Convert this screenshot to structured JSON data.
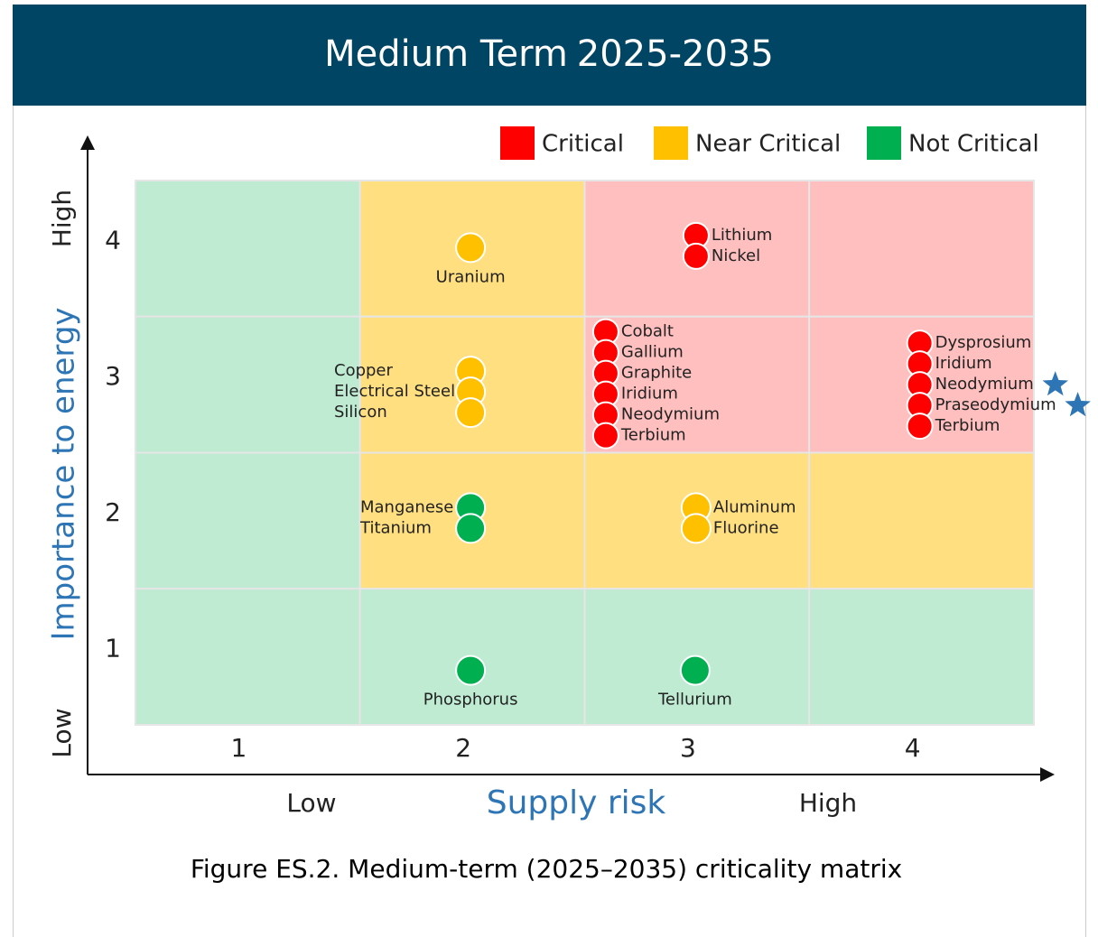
{
  "header": {
    "title": "Medium Term",
    "years": "2025-2035"
  },
  "legend": [
    {
      "label": "Critical",
      "color": "#ff0000"
    },
    {
      "label": "Near Critical",
      "color": "#ffc000"
    },
    {
      "label": "Not Critical",
      "color": "#00b050"
    }
  ],
  "y_axis": {
    "title": "Importance to energy",
    "low": "Low",
    "high": "High",
    "ticks": [
      1,
      2,
      3,
      4
    ]
  },
  "x_axis": {
    "title": "Supply risk",
    "low": "Low",
    "high": "High",
    "ticks": [
      1,
      2,
      3,
      4
    ]
  },
  "zones": [
    [
      2,
      1,
      0,
      0
    ],
    [
      2,
      1,
      0,
      0
    ],
    [
      2,
      1,
      1,
      1
    ],
    [
      2,
      2,
      2,
      2
    ]
  ],
  "groups": [
    {
      "x": 2,
      "y": 4,
      "status": 1,
      "items": [
        {
          "name": "Uranium"
        }
      ]
    },
    {
      "x": 3,
      "y": 4,
      "status": 0,
      "items": [
        {
          "name": "Lithium"
        },
        {
          "name": "Nickel"
        }
      ]
    },
    {
      "x": 2,
      "y": 3,
      "status": 1,
      "items": [
        {
          "name": "Copper"
        },
        {
          "name": "Electrical Steel"
        },
        {
          "name": "Silicon"
        }
      ]
    },
    {
      "x": 3,
      "y": 3,
      "status": 0,
      "items": [
        {
          "name": "Cobalt"
        },
        {
          "name": "Gallium"
        },
        {
          "name": "Graphite"
        },
        {
          "name": "Iridium"
        },
        {
          "name": "Neodymium"
        },
        {
          "name": "Terbium"
        }
      ]
    },
    {
      "x": 4,
      "y": 3,
      "status": 0,
      "items": [
        {
          "name": "Dysprosium"
        },
        {
          "name": "Iridium"
        },
        {
          "name": "Neodymium",
          "star": true
        },
        {
          "name": "Praseodymium",
          "star": true
        },
        {
          "name": "Terbium"
        }
      ]
    },
    {
      "x": 2,
      "y": 2,
      "status": 2,
      "items": [
        {
          "name": "Manganese"
        },
        {
          "name": "Titanium"
        }
      ]
    },
    {
      "x": 3,
      "y": 2,
      "status": 1,
      "items": [
        {
          "name": "Aluminum"
        },
        {
          "name": "Fluorine"
        }
      ]
    },
    {
      "x": 2,
      "y": 1,
      "status": 2,
      "items": [
        {
          "name": "Phosphorus"
        }
      ]
    },
    {
      "x": 3,
      "y": 1,
      "status": 2,
      "items": [
        {
          "name": "Tellurium"
        }
      ]
    }
  ],
  "caption": "Figure ES.2. Medium-term (2025–2035) criticality matrix"
}
